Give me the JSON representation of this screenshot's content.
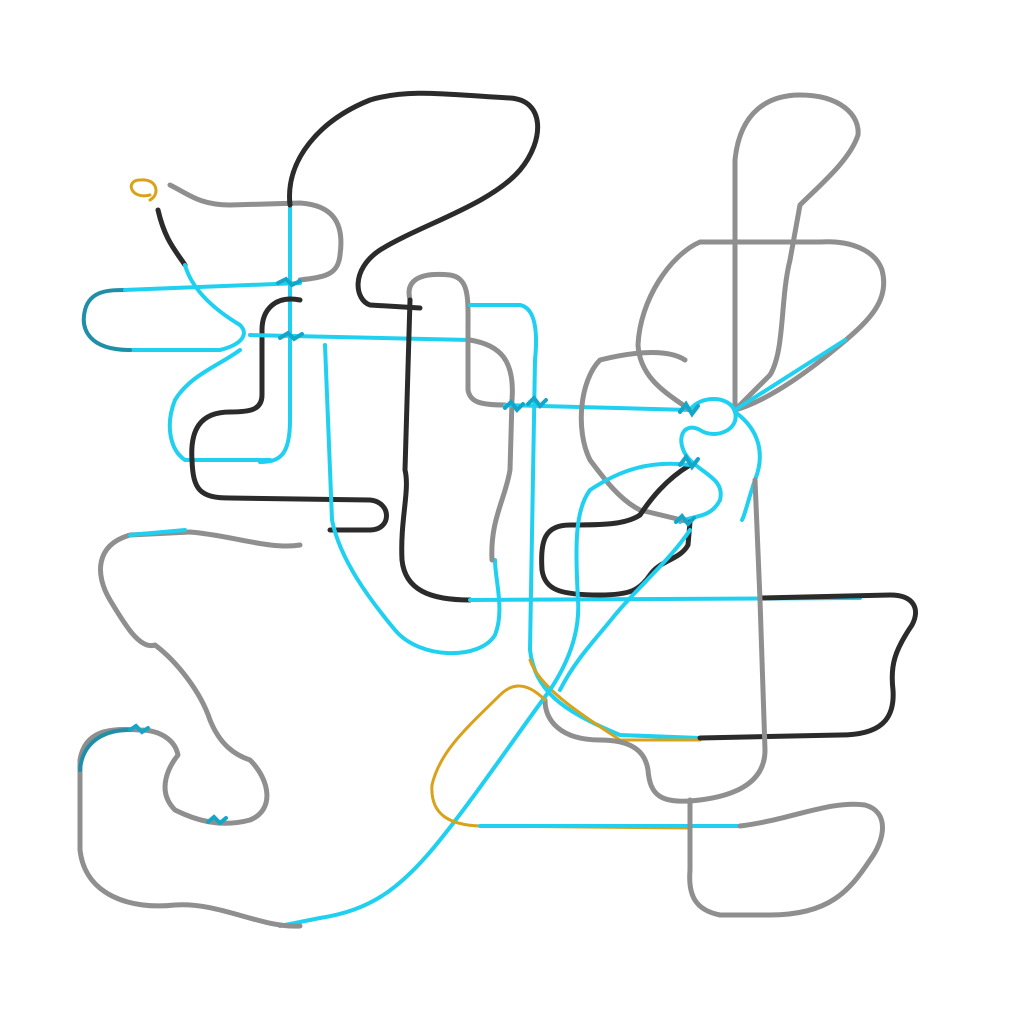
{
  "scene": {
    "background": "#ffffff",
    "colors": {
      "dark": "#2b2b2b",
      "grey": "#8f8f8f",
      "cyan": "#1fd0f0",
      "teal": "#1f8fa8",
      "gold": "#d8a21a",
      "green": "#3c8a5c"
    }
  }
}
